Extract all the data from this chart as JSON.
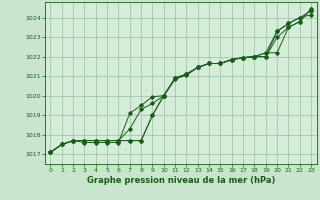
{
  "title": "Graphe pression niveau de la mer (hPa)",
  "background_color": "#c8e6cc",
  "plot_bg_color": "#d4edd8",
  "grid_color": "#9bbf9e",
  "line_color": "#1a5c1a",
  "xlim": [
    -0.5,
    23.5
  ],
  "ylim": [
    1016.5,
    1024.8
  ],
  "yticks": [
    1017,
    1018,
    1019,
    1020,
    1021,
    1022,
    1023,
    1024
  ],
  "xticks": [
    0,
    1,
    2,
    3,
    4,
    5,
    6,
    7,
    8,
    9,
    10,
    11,
    12,
    13,
    14,
    15,
    16,
    17,
    18,
    19,
    20,
    21,
    22,
    23
  ],
  "series1": [
    1017.1,
    1017.5,
    1017.7,
    1017.7,
    1017.7,
    1017.7,
    1017.7,
    1018.3,
    1019.3,
    1019.6,
    1020.0,
    1020.9,
    1021.1,
    1021.45,
    1021.65,
    1021.65,
    1021.85,
    1021.95,
    1022.0,
    1022.2,
    1023.3,
    1023.7,
    1024.0,
    1024.35
  ],
  "series2": [
    1017.1,
    1017.5,
    1017.7,
    1017.7,
    1017.7,
    1017.7,
    1017.7,
    1017.7,
    1017.7,
    1019.0,
    1020.0,
    1020.9,
    1021.1,
    1021.45,
    1021.65,
    1021.65,
    1021.85,
    1021.95,
    1022.0,
    1022.0,
    1023.0,
    1023.5,
    1023.8,
    1024.45
  ],
  "series3": [
    1017.1,
    1017.5,
    1017.7,
    1017.6,
    1017.6,
    1017.6,
    1017.6,
    1019.1,
    1019.5,
    1019.95,
    1020.0,
    1020.85,
    1021.05,
    1021.45,
    1021.65,
    1021.65,
    1021.85,
    1021.95,
    1022.0,
    1022.2,
    1022.2,
    1023.5,
    1023.8,
    1024.45
  ],
  "series4": [
    1017.1,
    1017.5,
    1017.7,
    1017.7,
    1017.7,
    1017.7,
    1017.7,
    1017.7,
    1017.7,
    1019.0,
    1020.0,
    1020.9,
    1021.1,
    1021.45,
    1021.65,
    1021.65,
    1021.85,
    1021.95,
    1022.0,
    1022.0,
    1023.3,
    1023.7,
    1024.0,
    1024.15
  ]
}
